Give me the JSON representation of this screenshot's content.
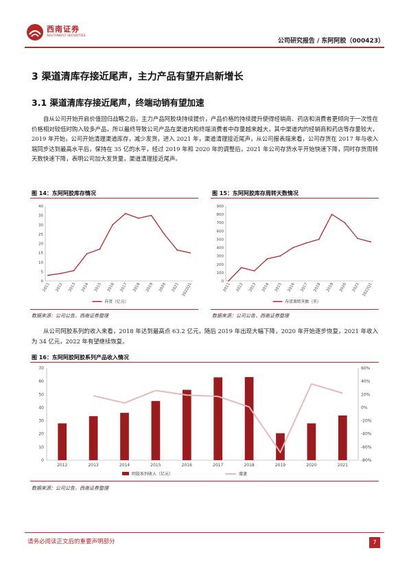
{
  "header": {
    "logo_cn": "西南证券",
    "logo_en": "SOUTHWEST SECURITIES",
    "report_title": "公司研究报告 / 东阿阿胶（000423）"
  },
  "section": {
    "h1": "3 渠道清库存接近尾声，主力产品有望开启新增长",
    "h2": "3.1 渠道清库存接近尾声，终端动销有望加速"
  },
  "paragraphs": {
    "p1": "自从公司开始开启价值回归战略之后，主力产品阿胶块持续提价，产品价格的持续提升使得经销商、药店和消费者更倾向于一次性在价格相对较低时购入较多产品，所以最终导致公司产品在渠道内和终端消费者中存量越来越大，其中渠道内的经销商和药店等存量较大，2019 年开始，公司开始清理渠道库存，减少发货，进入 2021 年，渠道清理接近尾声，从公司报表端来看，公司存货在 2017 年与收入端同步达到最高水平后，保持在 35 亿的水平，经过 2019 年和 2020 年的调整后，2021 年公司存货水平开始快速下降，同时存货周转天数快速下降，表明公司加大发货量，渠道清理接近尾声。",
    "p2": "从公司阿胶系列的收入来看，2018 年达到最高点 63.2 亿元，随后 2019 年出现大幅下降，2020 年开始逐步恢复，2021 年收入为 34 亿元，2022 年有望继续恢复。"
  },
  "figures": {
    "fig14": {
      "title": "图 14：东阿阿胶库存情况",
      "source": "数据来源：公司公告，西南证券整理"
    },
    "fig15": {
      "title": "图 15：东阿阿胶库存周转天数情况",
      "source": "数据来源：公司公告，西南证券整理"
    },
    "fig16": {
      "title": "图 16：东阿阿胶阿胶系列产品收入情况",
      "source": "数据来源：公司公告，西南证券整理"
    }
  },
  "chart_data": [
    {
      "id": "fig14",
      "type": "line",
      "x": [
        "2011",
        "2012",
        "2013",
        "2014",
        "2015",
        "2016",
        "2017",
        "2018",
        "2019",
        "2020",
        "2021",
        "2022Q1"
      ],
      "series": [
        {
          "name": "存货（亿元）",
          "values": [
            3,
            4,
            5.5,
            14.5,
            17,
            30,
            36,
            33.5,
            35,
            25,
            16.5,
            15
          ],
          "color": "#b3262a"
        }
      ],
      "ylim": [
        0,
        40
      ],
      "yticks": [
        "0",
        "5",
        "10",
        "15",
        "20",
        "25",
        "30",
        "35",
        "40"
      ],
      "legend": "bottom",
      "grid": false
    },
    {
      "id": "fig15",
      "type": "line",
      "x": [
        "2011",
        "2012",
        "2013",
        "2014",
        "2015",
        "2016",
        "2017",
        "2018",
        "2019",
        "2020",
        "2021",
        "2022Q1"
      ],
      "series": [
        {
          "name": "存货周转天数（天）",
          "values": [
            0,
            160,
            120,
            265,
            300,
            400,
            455,
            500,
            800,
            700,
            510,
            470
          ],
          "color": "#b3262a"
        }
      ],
      "ylim": [
        0,
        900
      ],
      "yticks": [
        "0",
        "100",
        "200",
        "300",
        "400",
        "500",
        "600",
        "700",
        "800",
        "900"
      ],
      "legend": "bottom",
      "grid": false
    },
    {
      "id": "fig16",
      "type": "bar",
      "categories": [
        "2012",
        "2013",
        "2014",
        "2015",
        "2016",
        "2017",
        "2018",
        "2019",
        "2020",
        "2021"
      ],
      "series": [
        {
          "name": "阿胶系列收入（亿元）",
          "type": "bar",
          "axis": "left",
          "values": [
            28,
            33.5,
            36,
            45,
            53.5,
            63,
            63.2,
            20.5,
            28,
            34
          ],
          "color": "#9b1c1f"
        },
        {
          "name": "增速",
          "type": "line",
          "axis": "right",
          "values": [
            null,
            18,
            7,
            26,
            19,
            17,
            1,
            -68,
            36,
            22
          ],
          "color": "#e8b8bc"
        }
      ],
      "ylim": [
        0,
        70
      ],
      "yticks": [
        "0",
        "10",
        "20",
        "30",
        "40",
        "50",
        "60",
        "70"
      ],
      "y2lim": [
        -80,
        60
      ],
      "y2ticks": [
        "-80%",
        "-60%",
        "-40%",
        "-20%",
        "0%",
        "20%",
        "40%",
        "60%"
      ],
      "legend": "bottom",
      "grid": false
    }
  ],
  "footer": {
    "disclaimer": "请务必阅读正文后的重要声明部分",
    "page_number": "7"
  }
}
